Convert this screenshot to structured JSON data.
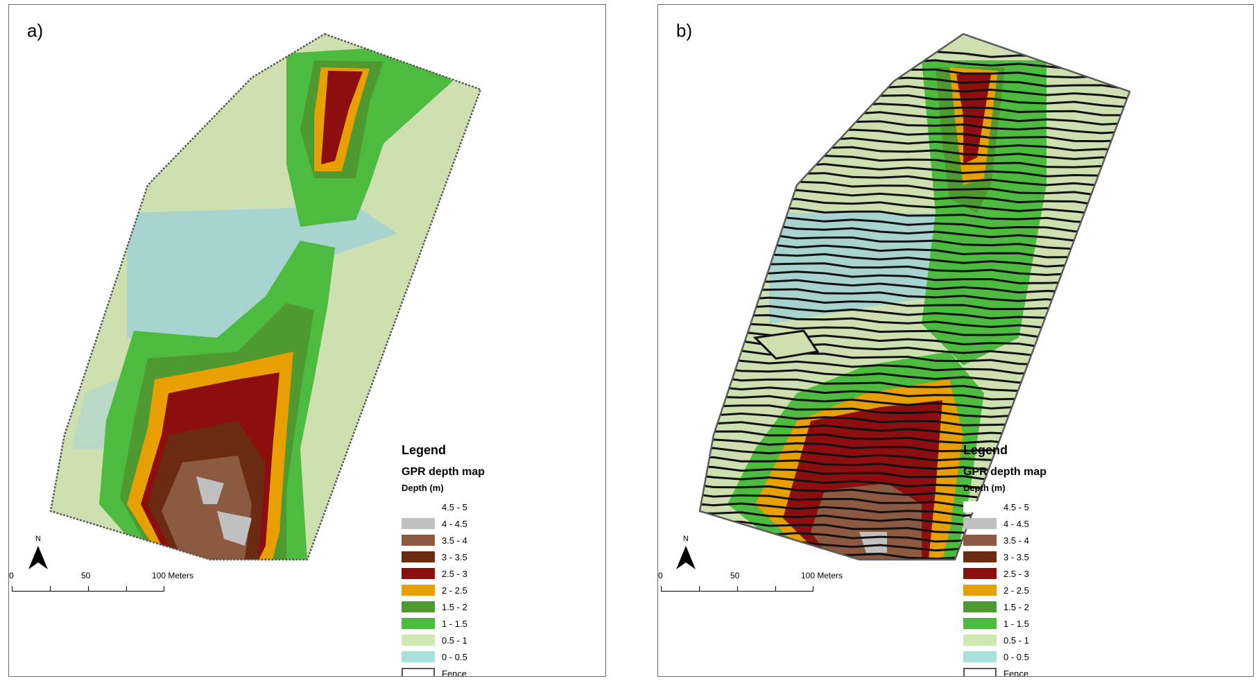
{
  "panels": [
    {
      "label": "a)",
      "has_survey_lines": false
    },
    {
      "label": "b)",
      "has_survey_lines": true
    }
  ],
  "legend": {
    "title": "Legend",
    "layer": "GPR depth map",
    "field": "Depth (m)",
    "classes": [
      {
        "label": "4.5 - 5",
        "color": "#ffffff"
      },
      {
        "label": "4 - 4.5",
        "color": "#c0c0c0"
      },
      {
        "label": "3.5 - 4",
        "color": "#8b5a40"
      },
      {
        "label": "3 - 3.5",
        "color": "#6b2a12"
      },
      {
        "label": "2.5 - 3",
        "color": "#8c0e0e"
      },
      {
        "label": "2 - 2.5",
        "color": "#e8a000"
      },
      {
        "label": "1.5 - 2",
        "color": "#4e9a30"
      },
      {
        "label": "1 - 1.5",
        "color": "#4cbb40"
      },
      {
        "label": "0.5 - 1",
        "color": "#cfe8b0"
      },
      {
        "label": "0 - 0.5",
        "color": "#a8e0dc"
      }
    ],
    "fence_label": "Fence"
  },
  "north_label": "N",
  "scale_bar": {
    "ticks": [
      "0",
      "50",
      "100 Meters"
    ]
  }
}
